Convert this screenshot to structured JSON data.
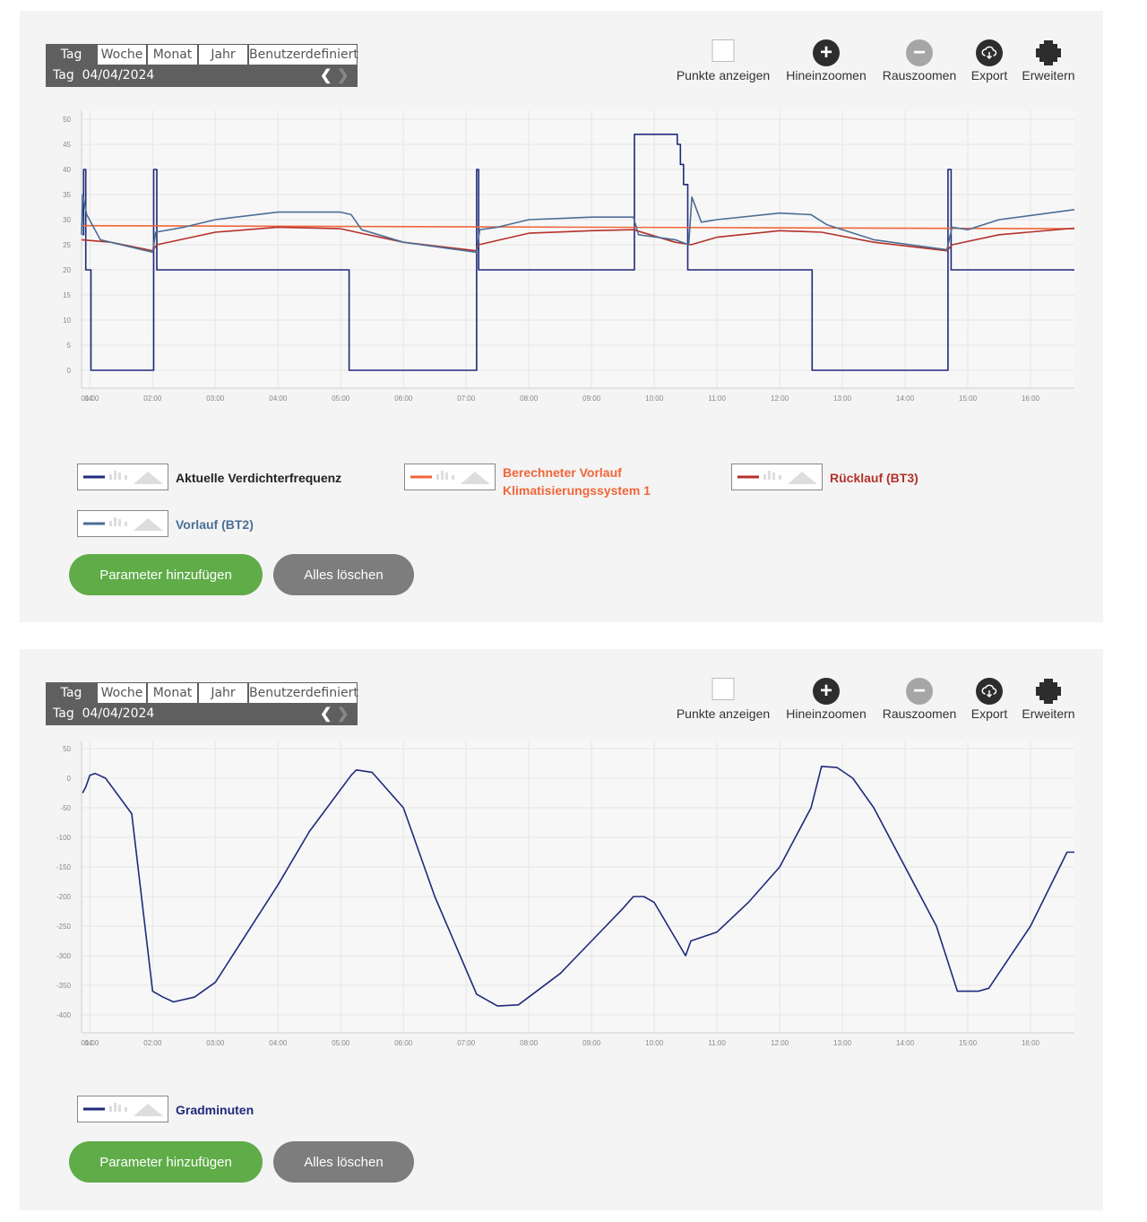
{
  "periods": [
    "Tag",
    "Woche",
    "Monat",
    "Jahr",
    "Benutzerdefiniert"
  ],
  "day_label": "Tag",
  "date": "04/04/2024",
  "tools": {
    "show_points": "Punkte anzeigen",
    "zoom_in": "Hineinzoomen",
    "zoom_out": "Rauszoomen",
    "export": "Export",
    "expand": "Erweitern"
  },
  "icons": {
    "prev": "chevron-left-icon",
    "next": "chevron-right-icon",
    "zoom_in": "plus-icon",
    "zoom_out": "minus-icon",
    "export": "cloud-download-icon",
    "expand": "expand-icon"
  },
  "buttons": {
    "add": "Parameter hinzufügen",
    "clear": "Alles löschen"
  },
  "chart_data": [
    {
      "type": "line",
      "x_ticks": [
        "04",
        "01:00",
        "02:00",
        "03:00",
        "04:00",
        "05:00",
        "06:00",
        "07:00",
        "08:00",
        "09:00",
        "10:00",
        "11:00",
        "12:00",
        "13:00",
        "14:00",
        "15:00",
        "16:00"
      ],
      "xlim": [
        "00:52",
        "16:42"
      ],
      "ylim": [
        0,
        50
      ],
      "y_ticks": [
        0,
        5,
        10,
        15,
        20,
        25,
        30,
        35,
        40,
        45,
        50
      ],
      "grid": true,
      "legend_placement": "bottom",
      "series": [
        {
          "name": "Aktuelle Verdichterfrequenz",
          "color": "#1f2a7a",
          "step": true,
          "points": [
            [
              "00:53",
              27
            ],
            [
              "00:54",
              40
            ],
            [
              "00:56",
              20
            ],
            [
              "01:00",
              20
            ],
            [
              "01:01",
              0
            ],
            [
              "02:00",
              0
            ],
            [
              "02:01",
              40
            ],
            [
              "02:04",
              20
            ],
            [
              "05:07",
              20
            ],
            [
              "05:08",
              0
            ],
            [
              "07:09",
              0
            ],
            [
              "07:10",
              40
            ],
            [
              "07:12",
              20
            ],
            [
              "09:40",
              20
            ],
            [
              "09:41",
              47
            ],
            [
              "10:20",
              47
            ],
            [
              "10:22",
              45
            ],
            [
              "10:25",
              41
            ],
            [
              "10:28",
              37
            ],
            [
              "10:32",
              20
            ],
            [
              "12:30",
              20
            ],
            [
              "12:31",
              0
            ],
            [
              "14:40",
              0
            ],
            [
              "14:41",
              40
            ],
            [
              "14:44",
              20
            ],
            [
              "16:42",
              20
            ]
          ]
        },
        {
          "name": "Berechneter Vorlauf Klimatisierungssystem 1",
          "color": "#f0653a",
          "points": [
            [
              "00:52",
              28.8
            ],
            [
              "16:42",
              28.2
            ]
          ]
        },
        {
          "name": "Rücklauf (BT3)",
          "color": "#b5312b",
          "points": [
            [
              "00:52",
              26
            ],
            [
              "01:20",
              25.5
            ],
            [
              "02:00",
              23.8
            ],
            [
              "02:04",
              25
            ],
            [
              "03:00",
              27.5
            ],
            [
              "04:00",
              28.5
            ],
            [
              "05:00",
              28.2
            ],
            [
              "05:15",
              27.5
            ],
            [
              "06:00",
              25.5
            ],
            [
              "07:10",
              23.8
            ],
            [
              "07:12",
              25
            ],
            [
              "08:00",
              27.3
            ],
            [
              "09:00",
              27.8
            ],
            [
              "09:40",
              28
            ],
            [
              "10:20",
              25.5
            ],
            [
              "10:35",
              25
            ],
            [
              "11:00",
              26.5
            ],
            [
              "12:00",
              27.8
            ],
            [
              "12:40",
              27.5
            ],
            [
              "13:30",
              25.5
            ],
            [
              "14:40",
              23.8
            ],
            [
              "14:45",
              25
            ],
            [
              "15:30",
              27
            ],
            [
              "16:42",
              28.3
            ]
          ]
        },
        {
          "name": "Vorlauf (BT2)",
          "color": "#4b6e95",
          "points": [
            [
              "00:52",
              27
            ],
            [
              "00:53",
              35
            ],
            [
              "00:57",
              31
            ],
            [
              "01:10",
              26
            ],
            [
              "02:00",
              23.5
            ],
            [
              "02:03",
              27.5
            ],
            [
              "02:30",
              28.5
            ],
            [
              "03:00",
              30
            ],
            [
              "04:00",
              31.5
            ],
            [
              "05:00",
              31.5
            ],
            [
              "05:10",
              31
            ],
            [
              "05:20",
              28
            ],
            [
              "06:00",
              25.5
            ],
            [
              "07:10",
              23.5
            ],
            [
              "07:13",
              28
            ],
            [
              "07:30",
              28.5
            ],
            [
              "08:00",
              30
            ],
            [
              "09:00",
              30.5
            ],
            [
              "09:40",
              30.5
            ],
            [
              "09:45",
              27
            ],
            [
              "10:20",
              26
            ],
            [
              "10:33",
              25
            ],
            [
              "10:36",
              34.5
            ],
            [
              "10:45",
              29.5
            ],
            [
              "11:00",
              30
            ],
            [
              "12:00",
              31.3
            ],
            [
              "12:30",
              31
            ],
            [
              "12:45",
              29
            ],
            [
              "13:30",
              26
            ],
            [
              "14:40",
              24
            ],
            [
              "14:45",
              28.5
            ],
            [
              "15:00",
              28
            ],
            [
              "15:30",
              30
            ],
            [
              "16:42",
              32
            ]
          ]
        }
      ]
    },
    {
      "type": "line",
      "x_ticks": [
        "04",
        "01:00",
        "02:00",
        "03:00",
        "04:00",
        "05:00",
        "06:00",
        "07:00",
        "08:00",
        "09:00",
        "10:00",
        "11:00",
        "12:00",
        "13:00",
        "14:00",
        "15:00",
        "16:00"
      ],
      "xlim": [
        "00:52",
        "16:42"
      ],
      "ylim": [
        -400,
        50
      ],
      "y_ticks": [
        50,
        0,
        -50,
        -100,
        -150,
        -200,
        -250,
        -300,
        -350,
        -400
      ],
      "grid": true,
      "legend_placement": "bottom",
      "series": [
        {
          "name": "Gradminuten",
          "color": "#1f2a7a",
          "points": [
            [
              "00:53",
              -25
            ],
            [
              "00:56",
              -15
            ],
            [
              "01:00",
              5
            ],
            [
              "01:05",
              8
            ],
            [
              "01:15",
              0
            ],
            [
              "01:40",
              -60
            ],
            [
              "02:00",
              -360
            ],
            [
              "02:10",
              -370
            ],
            [
              "02:20",
              -378
            ],
            [
              "02:40",
              -370
            ],
            [
              "03:00",
              -345
            ],
            [
              "04:00",
              -180
            ],
            [
              "04:30",
              -90
            ],
            [
              "05:10",
              5
            ],
            [
              "05:15",
              14
            ],
            [
              "05:30",
              10
            ],
            [
              "06:00",
              -50
            ],
            [
              "06:30",
              -200
            ],
            [
              "07:10",
              -365
            ],
            [
              "07:30",
              -385
            ],
            [
              "07:50",
              -383
            ],
            [
              "08:30",
              -330
            ],
            [
              "09:00",
              -275
            ],
            [
              "09:30",
              -220
            ],
            [
              "09:40",
              -200
            ],
            [
              "09:50",
              -200
            ],
            [
              "10:00",
              -210
            ],
            [
              "10:30",
              -300
            ],
            [
              "10:35",
              -275
            ],
            [
              "11:00",
              -260
            ],
            [
              "11:30",
              -210
            ],
            [
              "12:00",
              -150
            ],
            [
              "12:30",
              -50
            ],
            [
              "12:40",
              20
            ],
            [
              "12:55",
              18
            ],
            [
              "13:10",
              0
            ],
            [
              "13:30",
              -50
            ],
            [
              "14:30",
              -250
            ],
            [
              "14:50",
              -360
            ],
            [
              "15:10",
              -360
            ],
            [
              "15:20",
              -355
            ],
            [
              "16:00",
              -250
            ],
            [
              "16:35",
              -125
            ],
            [
              "16:42",
              -125
            ]
          ]
        }
      ]
    }
  ]
}
